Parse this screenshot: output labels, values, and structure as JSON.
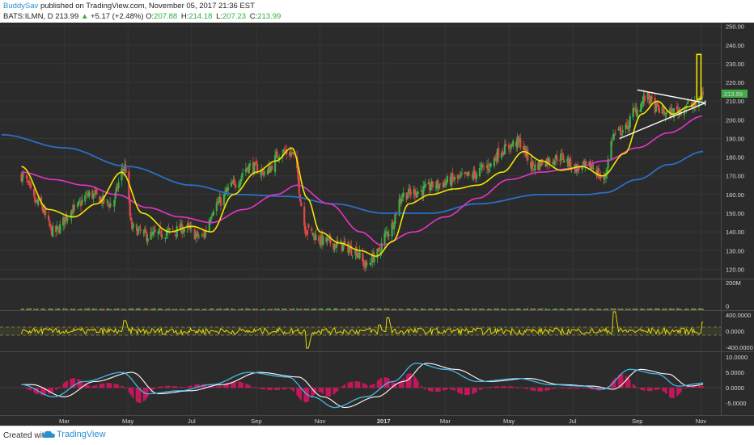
{
  "header": {
    "author": "BuddySav",
    "published_text": "published on TradingView.com, November 05, 2017 21:36 EST",
    "symbol": "BATS:ILMN, D",
    "last": "213.99",
    "change": "+5.17 (+2.48%)",
    "open_label": "O:",
    "open": "207.88",
    "high_label": "H:",
    "high": "214.18",
    "low_label": "L:",
    "low": "207.23",
    "close_label": "C:",
    "close": "213.99"
  },
  "footer": {
    "created_with": "Created with",
    "brand": "TradingView"
  },
  "colors": {
    "background": "#2b2b2b",
    "grid": "#363636",
    "candle_up": "#3fae49",
    "candle_down": "#e04848",
    "ema_fast": "#f2e600",
    "ma_mid": "#e633c8",
    "ma_long": "#2b6fc4",
    "triangle": "#ffffff",
    "target_box": "#f2e600",
    "price_badge": "#3fae49",
    "macd_line": "#47b7e8",
    "signal_line": "#ffffff",
    "histogram": "#c2185b"
  },
  "price_axis": {
    "ticks": [
      "250.00",
      "240.00",
      "230.00",
      "220.00",
      "210.00",
      "200.00",
      "190.00",
      "180.00",
      "170.00",
      "160.00",
      "150.00",
      "140.00",
      "130.00",
      "120.00"
    ],
    "current_price_label": "213.99"
  },
  "volume_axis": {
    "ticks": [
      "200M",
      "0"
    ]
  },
  "cci_axis": {
    "ticks": [
      "400.0000",
      "0.0000",
      "-400.0000"
    ]
  },
  "macd_axis": {
    "ticks": [
      "10.0000",
      "5.0000",
      "0.0000",
      "-5.0000"
    ]
  },
  "time_axis": {
    "labels": [
      "Mar",
      "May",
      "Jul",
      "Sep",
      "Nov",
      "2017",
      "Mar",
      "May",
      "Jul",
      "Sep",
      "Nov"
    ]
  },
  "chart_data": {
    "type": "candlestick",
    "symbol": "BATS:ILMN",
    "interval": "D",
    "ylim": [
      115,
      252
    ],
    "price_keypoints": [
      [
        "2016-01-20",
        170
      ],
      [
        "2016-02-05",
        155
      ],
      [
        "2016-02-20",
        140
      ],
      [
        "2016-03-10",
        152
      ],
      [
        "2016-03-25",
        160
      ],
      [
        "2016-04-15",
        155
      ],
      [
        "2016-04-28",
        175
      ],
      [
        "2016-05-05",
        142
      ],
      [
        "2016-05-20",
        138
      ],
      [
        "2016-06-10",
        140
      ],
      [
        "2016-06-25",
        142
      ],
      [
        "2016-07-10",
        137
      ],
      [
        "2016-07-25",
        155
      ],
      [
        "2016-08-10",
        165
      ],
      [
        "2016-08-25",
        175
      ],
      [
        "2016-09-10",
        172
      ],
      [
        "2016-09-25",
        183
      ],
      [
        "2016-10-05",
        182
      ],
      [
        "2016-10-20",
        140
      ],
      [
        "2016-11-05",
        135
      ],
      [
        "2016-11-20",
        133
      ],
      [
        "2016-12-05",
        130
      ],
      [
        "2016-12-15",
        122
      ],
      [
        "2016-12-25",
        128
      ],
      [
        "2017-01-05",
        140
      ],
      [
        "2017-01-20",
        160
      ],
      [
        "2017-02-05",
        162
      ],
      [
        "2017-02-20",
        165
      ],
      [
        "2017-03-10",
        168
      ],
      [
        "2017-03-25",
        170
      ],
      [
        "2017-04-10",
        175
      ],
      [
        "2017-04-25",
        184
      ],
      [
        "2017-05-10",
        188
      ],
      [
        "2017-05-25",
        175
      ],
      [
        "2017-06-05",
        178
      ],
      [
        "2017-06-20",
        180
      ],
      [
        "2017-07-05",
        174
      ],
      [
        "2017-07-20",
        175
      ],
      [
        "2017-07-30",
        168
      ],
      [
        "2017-08-10",
        192
      ],
      [
        "2017-08-20",
        195
      ],
      [
        "2017-08-30",
        205
      ],
      [
        "2017-09-10",
        212
      ],
      [
        "2017-09-20",
        206
      ],
      [
        "2017-09-30",
        203
      ],
      [
        "2017-10-10",
        205
      ],
      [
        "2017-10-20",
        208
      ],
      [
        "2017-10-27",
        207
      ],
      [
        "2017-11-03",
        214
      ]
    ],
    "ema_fast": [
      [
        "2016-01-20",
        175
      ],
      [
        "2016-02-15",
        152
      ],
      [
        "2016-03-10",
        148
      ],
      [
        "2016-04-01",
        155
      ],
      [
        "2016-04-25",
        172
      ],
      [
        "2016-05-15",
        150
      ],
      [
        "2016-06-10",
        140
      ],
      [
        "2016-07-01",
        143
      ],
      [
        "2016-07-20",
        140
      ],
      [
        "2016-08-10",
        160
      ],
      [
        "2016-09-01",
        172
      ],
      [
        "2016-09-20",
        178
      ],
      [
        "2016-10-05",
        185
      ],
      [
        "2016-10-20",
        158
      ],
      [
        "2016-11-01",
        140
      ],
      [
        "2016-11-20",
        134
      ],
      [
        "2016-12-10",
        130
      ],
      [
        "2016-12-25",
        127
      ],
      [
        "2017-01-10",
        135
      ],
      [
        "2017-01-25",
        155
      ],
      [
        "2017-02-15",
        160
      ],
      [
        "2017-03-10",
        163
      ],
      [
        "2017-04-01",
        165
      ],
      [
        "2017-04-25",
        172
      ],
      [
        "2017-05-15",
        183
      ],
      [
        "2017-06-01",
        178
      ],
      [
        "2017-06-20",
        173
      ],
      [
        "2017-07-10",
        175
      ],
      [
        "2017-07-30",
        170
      ],
      [
        "2017-08-20",
        182
      ],
      [
        "2017-09-05",
        203
      ],
      [
        "2017-09-20",
        210
      ],
      [
        "2017-10-05",
        203
      ],
      [
        "2017-10-20",
        207
      ],
      [
        "2017-11-03",
        212
      ]
    ],
    "ma_mid": [
      [
        "2016-01-20",
        172
      ],
      [
        "2016-02-20",
        168
      ],
      [
        "2016-03-20",
        165
      ],
      [
        "2016-04-20",
        160
      ],
      [
        "2016-05-20",
        153
      ],
      [
        "2016-06-20",
        148
      ],
      [
        "2016-07-20",
        145
      ],
      [
        "2016-08-20",
        152
      ],
      [
        "2016-09-20",
        160
      ],
      [
        "2016-10-10",
        165
      ],
      [
        "2016-11-10",
        155
      ],
      [
        "2016-12-10",
        140
      ],
      [
        "2016-12-30",
        133
      ],
      [
        "2017-01-30",
        140
      ],
      [
        "2017-03-01",
        148
      ],
      [
        "2017-04-01",
        158
      ],
      [
        "2017-05-01",
        168
      ],
      [
        "2017-06-01",
        172
      ],
      [
        "2017-07-01",
        174
      ],
      [
        "2017-08-01",
        178
      ],
      [
        "2017-09-01",
        185
      ],
      [
        "2017-10-01",
        193
      ],
      [
        "2017-11-03",
        202
      ]
    ],
    "ma_long": [
      [
        "2016-01-01",
        192
      ],
      [
        "2016-03-01",
        185
      ],
      [
        "2016-05-01",
        175
      ],
      [
        "2016-07-01",
        165
      ],
      [
        "2016-08-15",
        160
      ],
      [
        "2016-10-01",
        159
      ],
      [
        "2016-11-15",
        155
      ],
      [
        "2017-01-01",
        150
      ],
      [
        "2017-02-15",
        150
      ],
      [
        "2017-04-01",
        155
      ],
      [
        "2017-06-01",
        160
      ],
      [
        "2017-07-15",
        160
      ],
      [
        "2017-08-01",
        161
      ],
      [
        "2017-09-01",
        168
      ],
      [
        "2017-10-01",
        176
      ],
      [
        "2017-11-03",
        183
      ]
    ],
    "triangle": {
      "upper": [
        [
          "2017-09-01",
          216
        ],
        [
          "2017-11-05",
          209
        ]
      ],
      "lower": [
        [
          "2017-08-15",
          190
        ],
        [
          "2017-11-05",
          209
        ]
      ]
    },
    "target_box": {
      "x": [
        "2017-10-28",
        "2017-11-01"
      ],
      "y": [
        211,
        235
      ]
    },
    "indicators": [
      "Volume",
      "CCI",
      "MACD"
    ]
  }
}
